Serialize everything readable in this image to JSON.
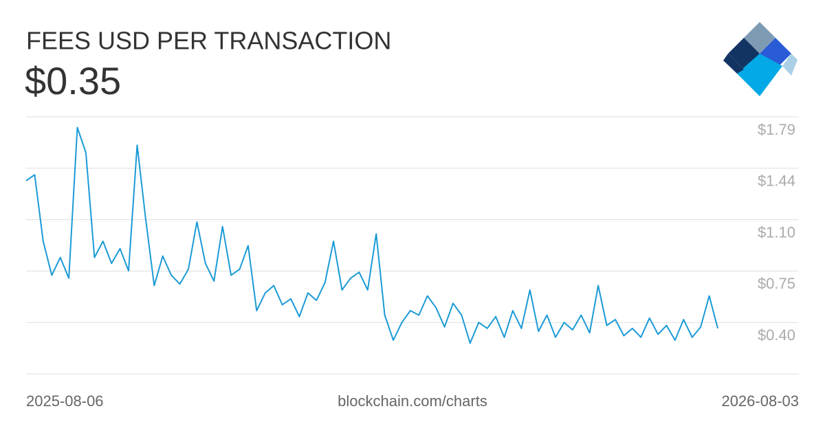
{
  "chart_data": {
    "type": "line",
    "title": "FEES USD PER TRANSACTION",
    "subtitle": "$0.35",
    "source": "blockchain.com/charts",
    "x": [
      "2025-08-06",
      "2025-08-10",
      "2025-08-14",
      "2025-08-18",
      "2025-08-22",
      "2025-08-26",
      "2025-08-30",
      "2025-09-03",
      "2025-09-07",
      "2025-09-11",
      "2025-09-15",
      "2025-09-19",
      "2025-09-23",
      "2025-09-27",
      "2025-10-01",
      "2025-10-05",
      "2025-10-09",
      "2025-10-13",
      "2025-10-17",
      "2025-10-21",
      "2025-10-25",
      "2025-10-29",
      "2025-11-02",
      "2025-11-06",
      "2025-11-10",
      "2025-11-14",
      "2025-11-18",
      "2025-11-22",
      "2025-11-26",
      "2025-11-30",
      "2025-12-04",
      "2025-12-08",
      "2025-12-12",
      "2025-12-16",
      "2025-12-20",
      "2025-12-24",
      "2025-12-28",
      "2026-01-01",
      "2026-01-05",
      "2026-01-09",
      "2026-01-13",
      "2026-01-17",
      "2026-01-21",
      "2026-01-25",
      "2026-01-29",
      "2026-02-02",
      "2026-02-06",
      "2026-02-10",
      "2026-02-14",
      "2026-02-18",
      "2026-02-22",
      "2026-02-26",
      "2026-03-02",
      "2026-03-06",
      "2026-03-10",
      "2026-03-14",
      "2026-03-18",
      "2026-03-22",
      "2026-03-26",
      "2026-03-30",
      "2026-04-03",
      "2026-04-07",
      "2026-04-11",
      "2026-04-15",
      "2026-04-19",
      "2026-04-23",
      "2026-04-27",
      "2026-05-01",
      "2026-05-05",
      "2026-05-09",
      "2026-05-13",
      "2026-05-17",
      "2026-05-21",
      "2026-05-25",
      "2026-05-29",
      "2026-06-02",
      "2026-06-06",
      "2026-06-10",
      "2026-06-14",
      "2026-06-18",
      "2026-06-22",
      "2026-06-26"
    ],
    "series": [
      {
        "name": "Fees USD per transaction",
        "color": "#1a9ad6",
        "values": [
          1.36,
          1.4,
          0.95,
          0.72,
          0.84,
          0.7,
          1.72,
          1.55,
          0.84,
          0.95,
          0.8,
          0.9,
          0.75,
          1.6,
          1.1,
          0.65,
          0.85,
          0.72,
          0.66,
          0.76,
          1.08,
          0.8,
          0.68,
          1.05,
          0.72,
          0.76,
          0.92,
          0.48,
          0.6,
          0.65,
          0.52,
          0.56,
          0.44,
          0.6,
          0.55,
          0.67,
          0.95,
          0.62,
          0.7,
          0.74,
          0.62,
          1.0,
          0.45,
          0.28,
          0.4,
          0.48,
          0.45,
          0.58,
          0.5,
          0.37,
          0.53,
          0.45,
          0.26,
          0.4,
          0.36,
          0.44,
          0.3,
          0.48,
          0.36,
          0.62,
          0.34,
          0.45,
          0.3,
          0.4,
          0.35,
          0.45,
          0.33,
          0.65,
          0.38,
          0.42,
          0.31,
          0.36,
          0.3,
          0.43,
          0.32,
          0.38,
          0.28,
          0.42,
          0.3,
          0.37,
          0.58,
          0.36
        ]
      }
    ],
    "xlim": [
      "2025-08-06",
      "2026-08-03"
    ],
    "xticks": [
      "2025-08-06",
      "2026-08-03"
    ],
    "ylim": [
      0.052,
      1.792
    ],
    "yticks": [
      {
        "value": 0.4,
        "label": "$0.40"
      },
      {
        "value": 0.748,
        "label": "$0.75"
      },
      {
        "value": 1.096,
        "label": "$1.10"
      },
      {
        "value": 1.444,
        "label": "$1.44"
      },
      {
        "value": 1.792,
        "label": "$1.79"
      }
    ],
    "grid": true
  }
}
